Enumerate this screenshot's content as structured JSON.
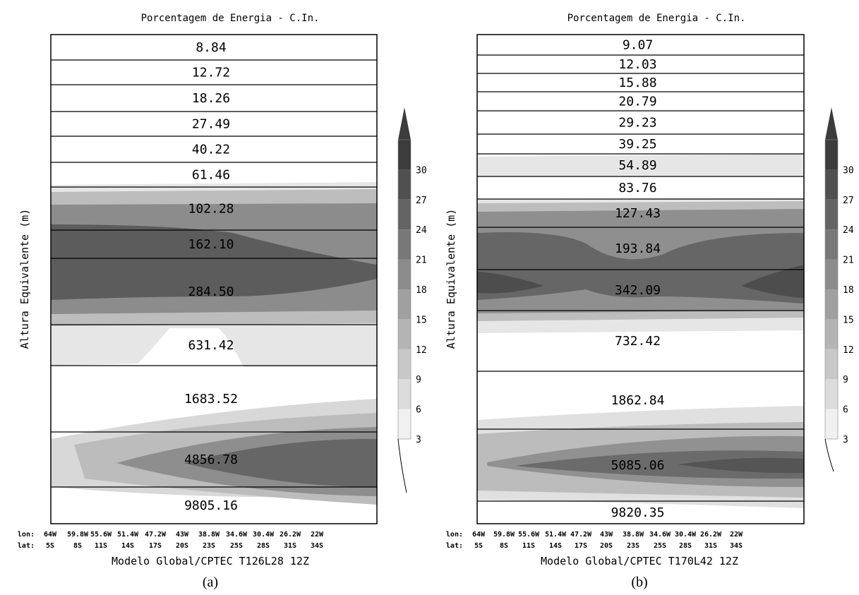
{
  "chart_data": [
    {
      "type": "heatmap",
      "panel_label": "(a)",
      "title": "Porcentagem de Energia - C.In.",
      "ylabel": "Altura Equivalente (m)",
      "xlabel": "Modelo Global/CPTEC T126L28 12Z",
      "x_axis_rows": [
        {
          "label": "lon:",
          "ticks": [
            "64W",
            "59.8W",
            "55.6W",
            "51.4W",
            "47.2W",
            "43W",
            "38.8W",
            "34.6W",
            "30.4W",
            "26.2W",
            "22W"
          ]
        },
        {
          "label": "lat:",
          "ticks": [
            "5S",
            "8S",
            "11S",
            "14S",
            "17S",
            "20S",
            "23S",
            "25S",
            "28S",
            "31S",
            "34S"
          ]
        }
      ],
      "y_levels": [
        "8.84",
        "12.72",
        "18.26",
        "27.49",
        "40.22",
        "61.46",
        "102.28",
        "162.10",
        "284.50",
        "631.42",
        "1683.52",
        "4856.78",
        "9805.16"
      ],
      "colorbar": {
        "ticks": [
          3,
          6,
          9,
          12,
          15,
          18,
          21,
          24,
          27,
          30
        ],
        "colors": [
          "#f0f0f0",
          "#dcdcdc",
          "#c8c8c8",
          "#b4b4b4",
          "#a0a0a0",
          "#8c8c8c",
          "#787878",
          "#646464",
          "#505050",
          "#3c3c3c"
        ],
        "extend": "max"
      },
      "mode_energy_percent": [
        0,
        0,
        0,
        0,
        0,
        2,
        15,
        24,
        27,
        5,
        0,
        9,
        2
      ]
    },
    {
      "type": "heatmap",
      "panel_label": "(b)",
      "title": "Porcentagem de Energia - C.In.",
      "ylabel": "Altura Equivalente (m)",
      "xlabel": "Modelo Global/CPTEC T170L42 12Z",
      "x_axis_rows": [
        {
          "label": "lon:",
          "ticks": [
            "64W",
            "59.8W",
            "55.6W",
            "51.4W",
            "47.2W",
            "43W",
            "38.8W",
            "34.6W",
            "30.4W",
            "26.2W",
            "22W"
          ]
        },
        {
          "label": "lat:",
          "ticks": [
            "5S",
            "8S",
            "11S",
            "14S",
            "17S",
            "20S",
            "23S",
            "25S",
            "28S",
            "31S",
            "34S"
          ]
        }
      ],
      "y_levels": [
        "9.07",
        "12.03",
        "15.88",
        "20.79",
        "29.23",
        "39.25",
        "54.89",
        "83.76",
        "127.43",
        "193.84",
        "342.09",
        "732.42",
        "1862.84",
        "5085.06",
        "9820.35"
      ],
      "colorbar": {
        "ticks": [
          3,
          6,
          9,
          12,
          15,
          18,
          21,
          24,
          27,
          30
        ],
        "colors": [
          "#f0f0f0",
          "#dcdcdc",
          "#c8c8c8",
          "#b4b4b4",
          "#a0a0a0",
          "#8c8c8c",
          "#787878",
          "#646464",
          "#505050",
          "#3c3c3c"
        ],
        "extend": "max"
      },
      "mode_energy_percent": [
        0,
        0,
        0,
        0,
        0,
        0,
        3,
        6,
        18,
        22,
        22,
        4,
        0,
        15,
        6
      ]
    }
  ]
}
